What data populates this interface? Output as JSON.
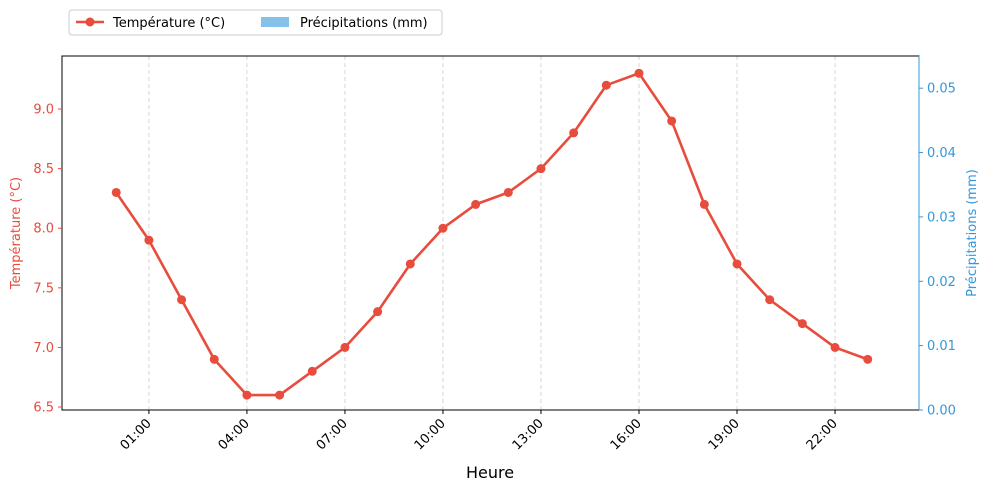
{
  "chart_data": {
    "type": "line",
    "title": "",
    "xlabel": "Heure",
    "ylabel": "Température (°C)",
    "y2label": "Précipitations (mm)",
    "x": [
      "00:00",
      "01:00",
      "02:00",
      "03:00",
      "04:00",
      "05:00",
      "06:00",
      "07:00",
      "08:00",
      "09:00",
      "10:00",
      "11:00",
      "12:00",
      "13:00",
      "14:00",
      "15:00",
      "16:00",
      "17:00",
      "18:00",
      "19:00",
      "20:00",
      "21:00",
      "22:00",
      "23:00"
    ],
    "xticks": [
      "01:00",
      "04:00",
      "07:00",
      "10:00",
      "13:00",
      "16:00",
      "19:00",
      "22:00"
    ],
    "series": [
      {
        "name": "Température (°C)",
        "type": "line",
        "axis": "left",
        "color": "#e74c3c",
        "values": [
          8.3,
          7.9,
          7.4,
          6.9,
          6.6,
          6.6,
          6.8,
          7.0,
          7.3,
          7.7,
          8.0,
          8.2,
          8.3,
          8.5,
          8.8,
          9.2,
          9.3,
          8.9,
          8.2,
          7.7,
          7.4,
          7.2,
          7.0,
          6.9
        ]
      },
      {
        "name": "Précipitations (mm)",
        "type": "bar",
        "axis": "right",
        "color": "#85c1e9",
        "values": [
          0,
          0,
          0,
          0,
          0,
          0,
          0,
          0,
          0,
          0,
          0,
          0,
          0,
          0,
          0,
          0,
          0,
          0,
          0,
          0,
          0,
          0,
          0,
          0
        ]
      }
    ],
    "ylim": [
      6.475,
      9.445
    ],
    "yticks": [
      "6.5",
      "7.0",
      "7.5",
      "8.0",
      "8.5",
      "9.0"
    ],
    "y2lim": [
      0,
      0.055
    ],
    "y2ticks": [
      "0.00",
      "0.01",
      "0.02",
      "0.03",
      "0.04",
      "0.05"
    ],
    "left_axis_color": "#e74c3c",
    "right_axis_color": "#3498db",
    "grid": "vertical dashed",
    "legend_placement": "top-left, above plot"
  }
}
